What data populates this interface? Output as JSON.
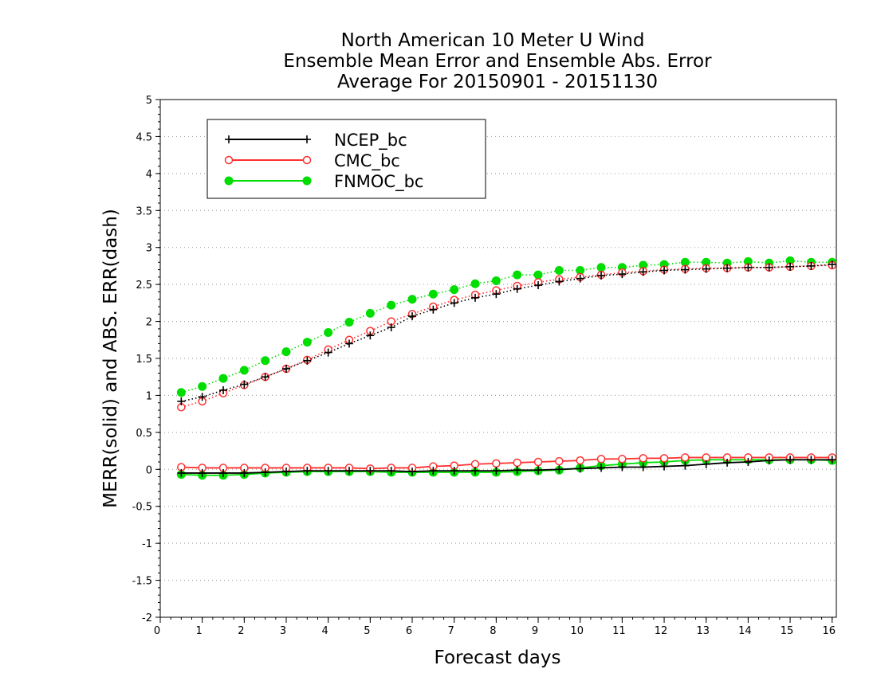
{
  "chart_data": {
    "type": "line",
    "title": [
      "North American 10 Meter U Wind",
      "Ensemble Mean Error and Ensemble Abs. Error",
      "Average For 20150901 - 20151130"
    ],
    "xlabel": "Forecast days",
    "ylabel": "MERR(solid) and ABS. ERR(dash)",
    "xlim": [
      0,
      16.1
    ],
    "ylim": [
      -2,
      5
    ],
    "xticks": [
      "0",
      "1",
      "2",
      "3",
      "4",
      "5",
      "6",
      "7",
      "8",
      "9",
      "10",
      "11",
      "12",
      "13",
      "14",
      "15",
      "16"
    ],
    "yticks": [
      "5",
      "4.5",
      "4",
      "3.5",
      "3",
      "2.5",
      "2",
      "1.5",
      "1",
      "0.5",
      "0",
      "-0.5",
      "-1",
      "-1.5",
      "-2"
    ],
    "grid": true,
    "legend_position": "top-left",
    "x": [
      0.5,
      1,
      1.5,
      2,
      2.5,
      3,
      3.5,
      4,
      4.5,
      5,
      5.5,
      6,
      6.5,
      7,
      7.5,
      8,
      8.5,
      9,
      9.5,
      10,
      10.5,
      11,
      11.5,
      12,
      12.5,
      13,
      13.5,
      14,
      14.5,
      15,
      15.5,
      16
    ],
    "series": [
      {
        "name": "NCEP_bc",
        "color": "#000000",
        "marker": "plus",
        "merr": [
          -0.05,
          -0.05,
          -0.05,
          -0.05,
          -0.04,
          -0.03,
          -0.02,
          -0.02,
          -0.02,
          -0.02,
          -0.02,
          -0.03,
          -0.02,
          -0.02,
          -0.02,
          -0.02,
          -0.01,
          -0.01,
          0,
          0.01,
          0.02,
          0.03,
          0.03,
          0.04,
          0.05,
          0.07,
          0.09,
          0.1,
          0.12,
          0.13,
          0.13,
          0.13
        ],
        "abs_err": [
          0.92,
          0.98,
          1.07,
          1.15,
          1.25,
          1.36,
          1.47,
          1.58,
          1.7,
          1.81,
          1.92,
          2.07,
          2.16,
          2.25,
          2.32,
          2.37,
          2.44,
          2.49,
          2.54,
          2.58,
          2.62,
          2.64,
          2.67,
          2.69,
          2.7,
          2.71,
          2.72,
          2.73,
          2.73,
          2.74,
          2.75,
          2.77
        ]
      },
      {
        "name": "CMC_bc",
        "color": "#ff3030",
        "marker": "open-circle",
        "merr": [
          0.03,
          0.02,
          0.02,
          0.02,
          0.02,
          0.02,
          0.02,
          0.02,
          0.02,
          0.01,
          0.02,
          0.02,
          0.04,
          0.05,
          0.07,
          0.08,
          0.09,
          0.1,
          0.11,
          0.12,
          0.14,
          0.14,
          0.15,
          0.15,
          0.16,
          0.16,
          0.16,
          0.16,
          0.16,
          0.16,
          0.16,
          0.16
        ],
        "abs_err": [
          0.84,
          0.92,
          1.03,
          1.14,
          1.25,
          1.36,
          1.48,
          1.62,
          1.75,
          1.87,
          2,
          2.1,
          2.2,
          2.29,
          2.36,
          2.42,
          2.48,
          2.53,
          2.57,
          2.6,
          2.63,
          2.66,
          2.68,
          2.7,
          2.71,
          2.72,
          2.72,
          2.73,
          2.73,
          2.74,
          2.75,
          2.76
        ]
      },
      {
        "name": "FNMOC_bc",
        "color": "#00dd00",
        "marker": "filled-circle",
        "merr": [
          -0.07,
          -0.08,
          -0.08,
          -0.07,
          -0.05,
          -0.04,
          -0.03,
          -0.03,
          -0.03,
          -0.03,
          -0.04,
          -0.04,
          -0.04,
          -0.04,
          -0.04,
          -0.04,
          -0.03,
          -0.02,
          -0.01,
          0.02,
          0.05,
          0.07,
          0.09,
          0.1,
          0.12,
          0.13,
          0.13,
          0.13,
          0.13,
          0.13,
          0.13,
          0.12
        ],
        "abs_err": [
          1.04,
          1.12,
          1.23,
          1.34,
          1.47,
          1.59,
          1.72,
          1.85,
          1.99,
          2.11,
          2.22,
          2.3,
          2.37,
          2.43,
          2.51,
          2.55,
          2.63,
          2.63,
          2.69,
          2.69,
          2.73,
          2.73,
          2.76,
          2.77,
          2.8,
          2.8,
          2.79,
          2.81,
          2.79,
          2.82,
          2.8,
          2.8
        ]
      }
    ]
  }
}
